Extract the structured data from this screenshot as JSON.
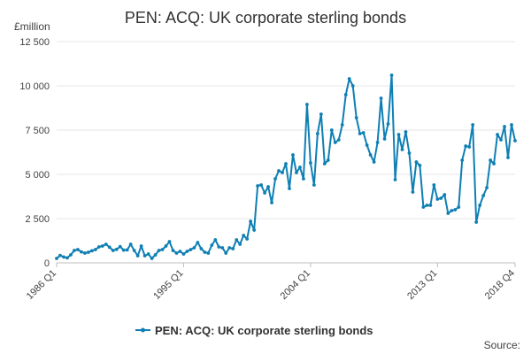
{
  "chart_data": {
    "type": "line",
    "title": "PEN: ACQ: UK corporate sterling bonds",
    "unit_label": "£million",
    "source_label": "Source:",
    "ylim": [
      0,
      12500
    ],
    "yticks": [
      0,
      2500,
      5000,
      7500,
      10000,
      12500
    ],
    "ytick_labels": [
      "0",
      "2 500",
      "5 000",
      "7 500",
      "10 000",
      "12 500"
    ],
    "xticks": [
      "1986 Q1",
      "1995 Q1",
      "2004 Q1",
      "2013 Q1",
      "2018 Q4"
    ],
    "grid": true,
    "legend_position": "bottom",
    "colors": {
      "series": "#0f7fb4",
      "grid": "#e6e6e6",
      "axis": "#bebebe"
    },
    "series": [
      {
        "name": "PEN: ACQ: UK corporate sterling bonds",
        "start": "1986 Q1",
        "values": [
          250,
          420,
          330,
          280,
          450,
          700,
          750,
          620,
          550,
          600,
          680,
          750,
          900,
          950,
          1050,
          880,
          700,
          760,
          920,
          720,
          730,
          1050,
          700,
          400,
          950,
          400,
          500,
          250,
          450,
          700,
          750,
          950,
          1200,
          700,
          550,
          650,
          500,
          650,
          750,
          850,
          1150,
          800,
          600,
          550,
          1000,
          1300,
          900,
          850,
          550,
          850,
          800,
          1300,
          1050,
          1550,
          1350,
          2350,
          1850,
          4350,
          4400,
          3950,
          4300,
          3400,
          4750,
          5200,
          5100,
          5600,
          4200,
          6100,
          5100,
          5400,
          4750,
          8950,
          5650,
          4400,
          7300,
          8400,
          5600,
          5800,
          7500,
          6800,
          6950,
          7800,
          9500,
          10400,
          10000,
          8200,
          7300,
          7350,
          6650,
          6100,
          5700,
          6800,
          9300,
          7000,
          7850,
          10600,
          4700,
          7250,
          6400,
          7400,
          6200,
          4000,
          5700,
          5500,
          3150,
          3250,
          3250,
          4400,
          3600,
          3650,
          3850,
          2800,
          2950,
          3000,
          3150,
          5800,
          6600,
          6550,
          7800,
          2300,
          3250,
          3800,
          4250,
          5800,
          5600,
          7250,
          6950,
          7700,
          5950,
          7800,
          6900
        ]
      }
    ]
  }
}
